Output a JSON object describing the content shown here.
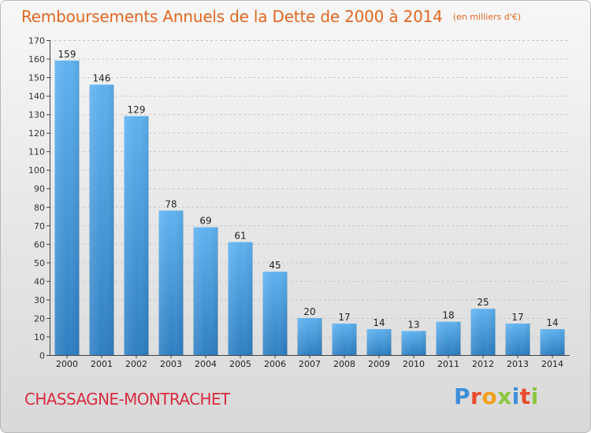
{
  "title": "Remboursements Annuels de la Dette de 2000 à 2014",
  "subtitle": "(en milliers d'€)",
  "commune": "CHASSAGNE-MONTRACHET",
  "logo_text": "Proxiti",
  "colors": {
    "title": "#e2671f",
    "commune": "#d72d42",
    "bar_top": "#5fb2ef",
    "bar_bottom": "#2f7fc2"
  },
  "chart_data": {
    "type": "bar",
    "title": "Remboursements Annuels de la Dette de 2000 à 2014",
    "subtitle": "(en milliers d'€)",
    "categories": [
      "2000",
      "2001",
      "2002",
      "2003",
      "2004",
      "2005",
      "2006",
      "2007",
      "2008",
      "2009",
      "2010",
      "2011",
      "2012",
      "2013",
      "2014"
    ],
    "values": [
      159,
      146,
      129,
      78,
      69,
      61,
      45,
      20,
      17,
      14,
      13,
      18,
      25,
      17,
      14
    ],
    "ylim": [
      0,
      170
    ],
    "yticks": [
      0,
      10,
      20,
      30,
      40,
      50,
      60,
      70,
      80,
      90,
      100,
      110,
      120,
      130,
      140,
      150,
      160,
      170
    ],
    "grid": true,
    "legend": "none"
  }
}
